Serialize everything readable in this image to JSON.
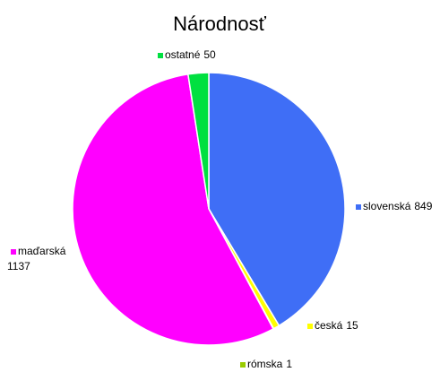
{
  "chart_data": {
    "type": "pie",
    "title": "Národnosť",
    "categories": [
      "slovenská",
      "česká",
      "rómska",
      "maďarská",
      "ostatné"
    ],
    "values": [
      849,
      15,
      1,
      1137,
      50
    ],
    "colors": [
      "#3f6ef6",
      "#ffff00",
      "#99cc00",
      "#ff00ff",
      "#00e040"
    ]
  }
}
